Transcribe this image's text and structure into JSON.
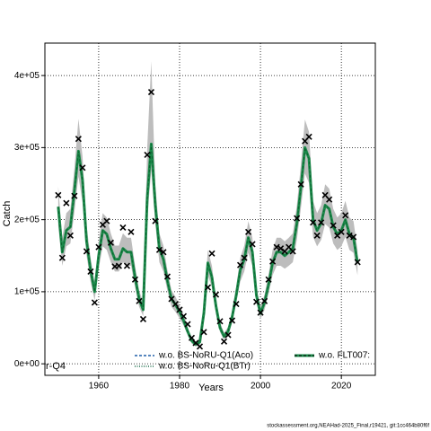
{
  "chart_data": {
    "type": "line",
    "xlabel": "Years",
    "ylabel": "Catch",
    "annotation": "r-Q4",
    "footer": "stockassessment.org,NEAHad-2025_Final,r19421, git:1cc464b80f6f",
    "x": [
      1950,
      1951,
      1952,
      1953,
      1954,
      1955,
      1956,
      1957,
      1958,
      1959,
      1960,
      1961,
      1962,
      1963,
      1964,
      1965,
      1966,
      1967,
      1968,
      1969,
      1970,
      1971,
      1972,
      1973,
      1974,
      1975,
      1976,
      1977,
      1978,
      1979,
      1980,
      1981,
      1982,
      1983,
      1984,
      1985,
      1986,
      1987,
      1988,
      1989,
      1990,
      1991,
      1992,
      1993,
      1994,
      1995,
      1996,
      1997,
      1998,
      1999,
      2000,
      2001,
      2002,
      2003,
      2004,
      2005,
      2006,
      2007,
      2008,
      2009,
      2010,
      2011,
      2012,
      2013,
      2014,
      2015,
      2016,
      2017,
      2018,
      2019,
      2020,
      2021,
      2022,
      2023,
      2024
    ],
    "fit": [
      218000,
      155000,
      185000,
      190000,
      240000,
      295000,
      255000,
      170000,
      130000,
      100000,
      150000,
      185000,
      180000,
      160000,
      145000,
      145000,
      160000,
      155000,
      155000,
      120000,
      90000,
      75000,
      230000,
      305000,
      220000,
      160000,
      145000,
      115000,
      90000,
      82000,
      72000,
      60000,
      45000,
      32000,
      27000,
      30000,
      70000,
      140000,
      120000,
      80000,
      50000,
      38000,
      45000,
      65000,
      95000,
      130000,
      145000,
      175000,
      155000,
      95000,
      70000,
      85000,
      110000,
      140000,
      155000,
      155000,
      150000,
      155000,
      160000,
      195000,
      245000,
      300000,
      285000,
      200000,
      185000,
      195000,
      220000,
      215000,
      190000,
      180000,
      185000,
      200000,
      180000,
      175000,
      140000
    ],
    "lower": [
      192000,
      136000,
      163000,
      167000,
      211000,
      260000,
      224000,
      150000,
      114000,
      88000,
      132000,
      163000,
      158000,
      141000,
      128000,
      128000,
      141000,
      136000,
      136000,
      106000,
      79000,
      66000,
      202000,
      268000,
      194000,
      141000,
      128000,
      101000,
      79000,
      72000,
      63000,
      53000,
      40000,
      28000,
      24000,
      26000,
      62000,
      123000,
      106000,
      70000,
      44000,
      33000,
      40000,
      57000,
      84000,
      114000,
      128000,
      154000,
      136000,
      84000,
      62000,
      75000,
      97000,
      123000,
      136000,
      136000,
      132000,
      136000,
      141000,
      172000,
      216000,
      264000,
      251000,
      176000,
      163000,
      172000,
      194000,
      189000,
      167000,
      158000,
      163000,
      176000,
      158000,
      154000,
      123000
    ],
    "upper": [
      246000,
      175000,
      209000,
      215000,
      271000,
      340000,
      288000,
      192000,
      147000,
      113000,
      170000,
      209000,
      203000,
      181000,
      164000,
      164000,
      181000,
      175000,
      175000,
      136000,
      102000,
      85000,
      300000,
      420000,
      249000,
      181000,
      164000,
      130000,
      102000,
      93000,
      81000,
      68000,
      51000,
      36000,
      31000,
      34000,
      79000,
      158000,
      136000,
      90000,
      57000,
      43000,
      51000,
      73000,
      107000,
      147000,
      164000,
      198000,
      175000,
      107000,
      79000,
      96000,
      124000,
      158000,
      175000,
      175000,
      170000,
      175000,
      181000,
      220000,
      277000,
      339000,
      322000,
      226000,
      209000,
      220000,
      249000,
      243000,
      215000,
      203000,
      209000,
      226000,
      203000,
      198000,
      158000
    ],
    "observed": [
      234000,
      147000,
      223000,
      178000,
      233000,
      312000,
      272000,
      156000,
      128000,
      85000,
      162000,
      193000,
      198000,
      168000,
      135000,
      136000,
      189000,
      136000,
      183000,
      117000,
      87000,
      62000,
      290000,
      377000,
      198000,
      158000,
      155000,
      121000,
      90000,
      83000,
      75000,
      66000,
      55000,
      36000,
      29000,
      24000,
      44000,
      106000,
      153000,
      96000,
      59000,
      31000,
      40000,
      60000,
      83000,
      137000,
      147000,
      183000,
      166000,
      86000,
      71000,
      87000,
      117000,
      142000,
      162000,
      160000,
      156000,
      162000,
      156000,
      202000,
      249000,
      309000,
      315000,
      196000,
      178000,
      196000,
      234000,
      228000,
      192000,
      178000,
      183000,
      206000,
      178000,
      176000,
      141000
    ],
    "fit_color": "#1b8a4a",
    "band_color": "#bdbdbd",
    "marker_color": "#000000",
    "xlim": [
      1946.7,
      2028.4
    ],
    "ylim": [
      -16000,
      445000
    ],
    "xticks": [
      1960,
      1980,
      2000,
      2020
    ],
    "yticks": [
      {
        "value": 0,
        "label": "0e+00"
      },
      {
        "value": 100000,
        "label": "1e+05"
      },
      {
        "value": 200000,
        "label": "2e+05"
      },
      {
        "value": 300000,
        "label": "3e+05"
      },
      {
        "value": 400000,
        "label": "4e+05"
      }
    ],
    "grid": true,
    "legend": [
      {
        "name": "w.o. BS-NoRU-Q1(Aco)",
        "color": "#1f5fa8",
        "style": "dashed"
      },
      {
        "name": "w.o. BS-NoRu-Q1(BTr)",
        "color": "#1b6b4a",
        "style": "dotted"
      },
      {
        "name": "w.o. FLT007:",
        "color": "#1b8a4a",
        "style": "thick"
      }
    ]
  }
}
